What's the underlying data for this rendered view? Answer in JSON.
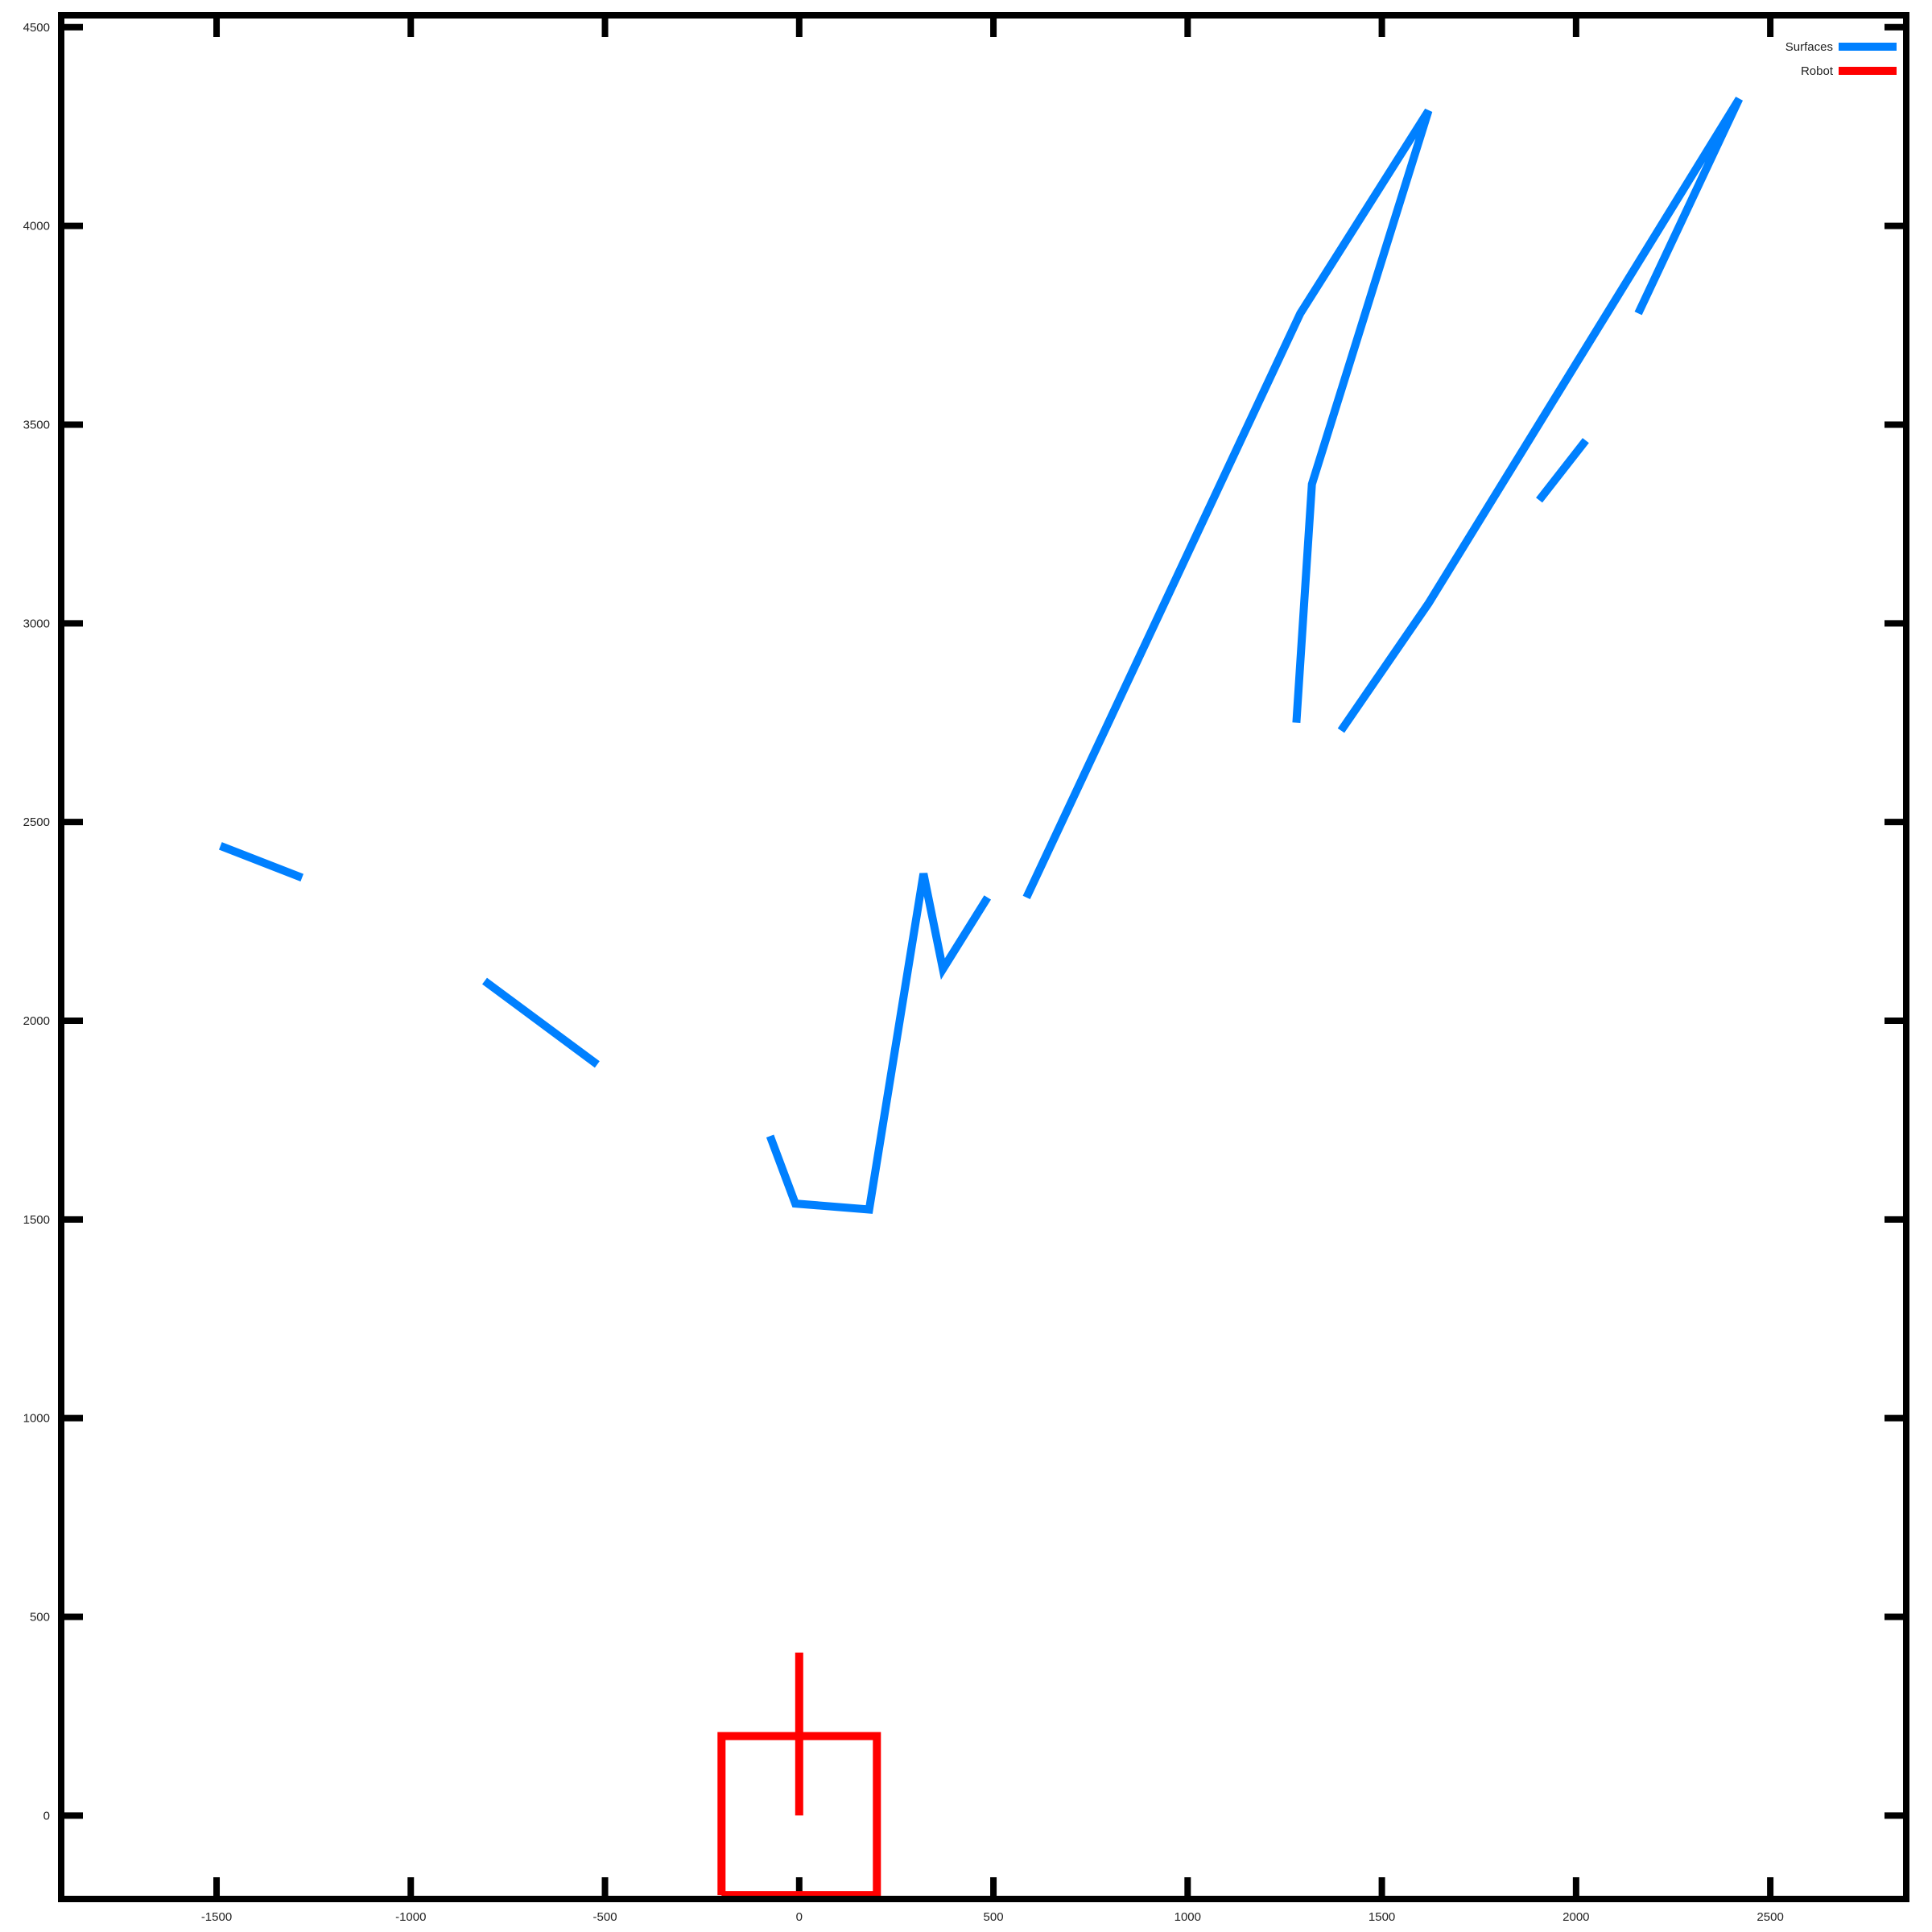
{
  "chart_data": {
    "type": "line",
    "title": "",
    "xlabel": "",
    "ylabel": "",
    "xlim": [
      -1900,
      2850
    ],
    "ylim": [
      -210,
      4530
    ],
    "x_ticks": [
      -1500,
      -1000,
      -500,
      0,
      500,
      1000,
      1500,
      2000,
      2500
    ],
    "x_tick_labels": [
      "-1500",
      "-1000",
      "-500",
      "0",
      "500",
      "1000",
      "1500",
      "2000",
      "2500"
    ],
    "y_ticks": [
      0,
      500,
      1000,
      1500,
      2000,
      2500,
      3000,
      3500,
      4000,
      4500
    ],
    "y_tick_labels": [
      "0",
      "500",
      "1000",
      "1500",
      "2000",
      "2500",
      "3000",
      "3500",
      "4000",
      "4500"
    ],
    "grid": false,
    "legend_position": "top-right",
    "legend": [
      {
        "name": "Surfaces",
        "color": "#0080ff"
      },
      {
        "name": "Robot",
        "color": "#ff0000"
      }
    ],
    "series": [
      {
        "name": "Surfaces",
        "color": "#0080ff",
        "segments": [
          [
            [
              -1490,
              2440
            ],
            [
              -1280,
              2360
            ]
          ],
          [
            [
              -810,
              2100
            ],
            [
              -520,
              1890
            ]
          ],
          [
            [
              -75,
              1710
            ],
            [
              -10,
              1540
            ],
            [
              180,
              1525
            ],
            [
              320,
              2370
            ],
            [
              370,
              2130
            ],
            [
              485,
              2310
            ]
          ],
          [
            [
              585,
              2310
            ],
            [
              1290,
              3780
            ],
            [
              1620,
              4290
            ],
            [
              1320,
              3350
            ],
            [
              1280,
              2750
            ]
          ],
          [
            [
              1395,
              2730
            ],
            [
              1620,
              3050
            ],
            [
              2420,
              4320
            ],
            [
              2160,
              3780
            ]
          ],
          [
            [
              1905,
              3310
            ],
            [
              2025,
              3460
            ]
          ]
        ]
      },
      {
        "name": "Robot",
        "color": "#ff0000",
        "segments": [
          [
            [
              -200,
              -200
            ],
            [
              200,
              -200
            ],
            [
              200,
              200
            ],
            [
              -200,
              200
            ],
            [
              -200,
              -200
            ]
          ],
          [
            [
              0,
              0
            ],
            [
              0,
              410
            ]
          ]
        ]
      }
    ]
  }
}
